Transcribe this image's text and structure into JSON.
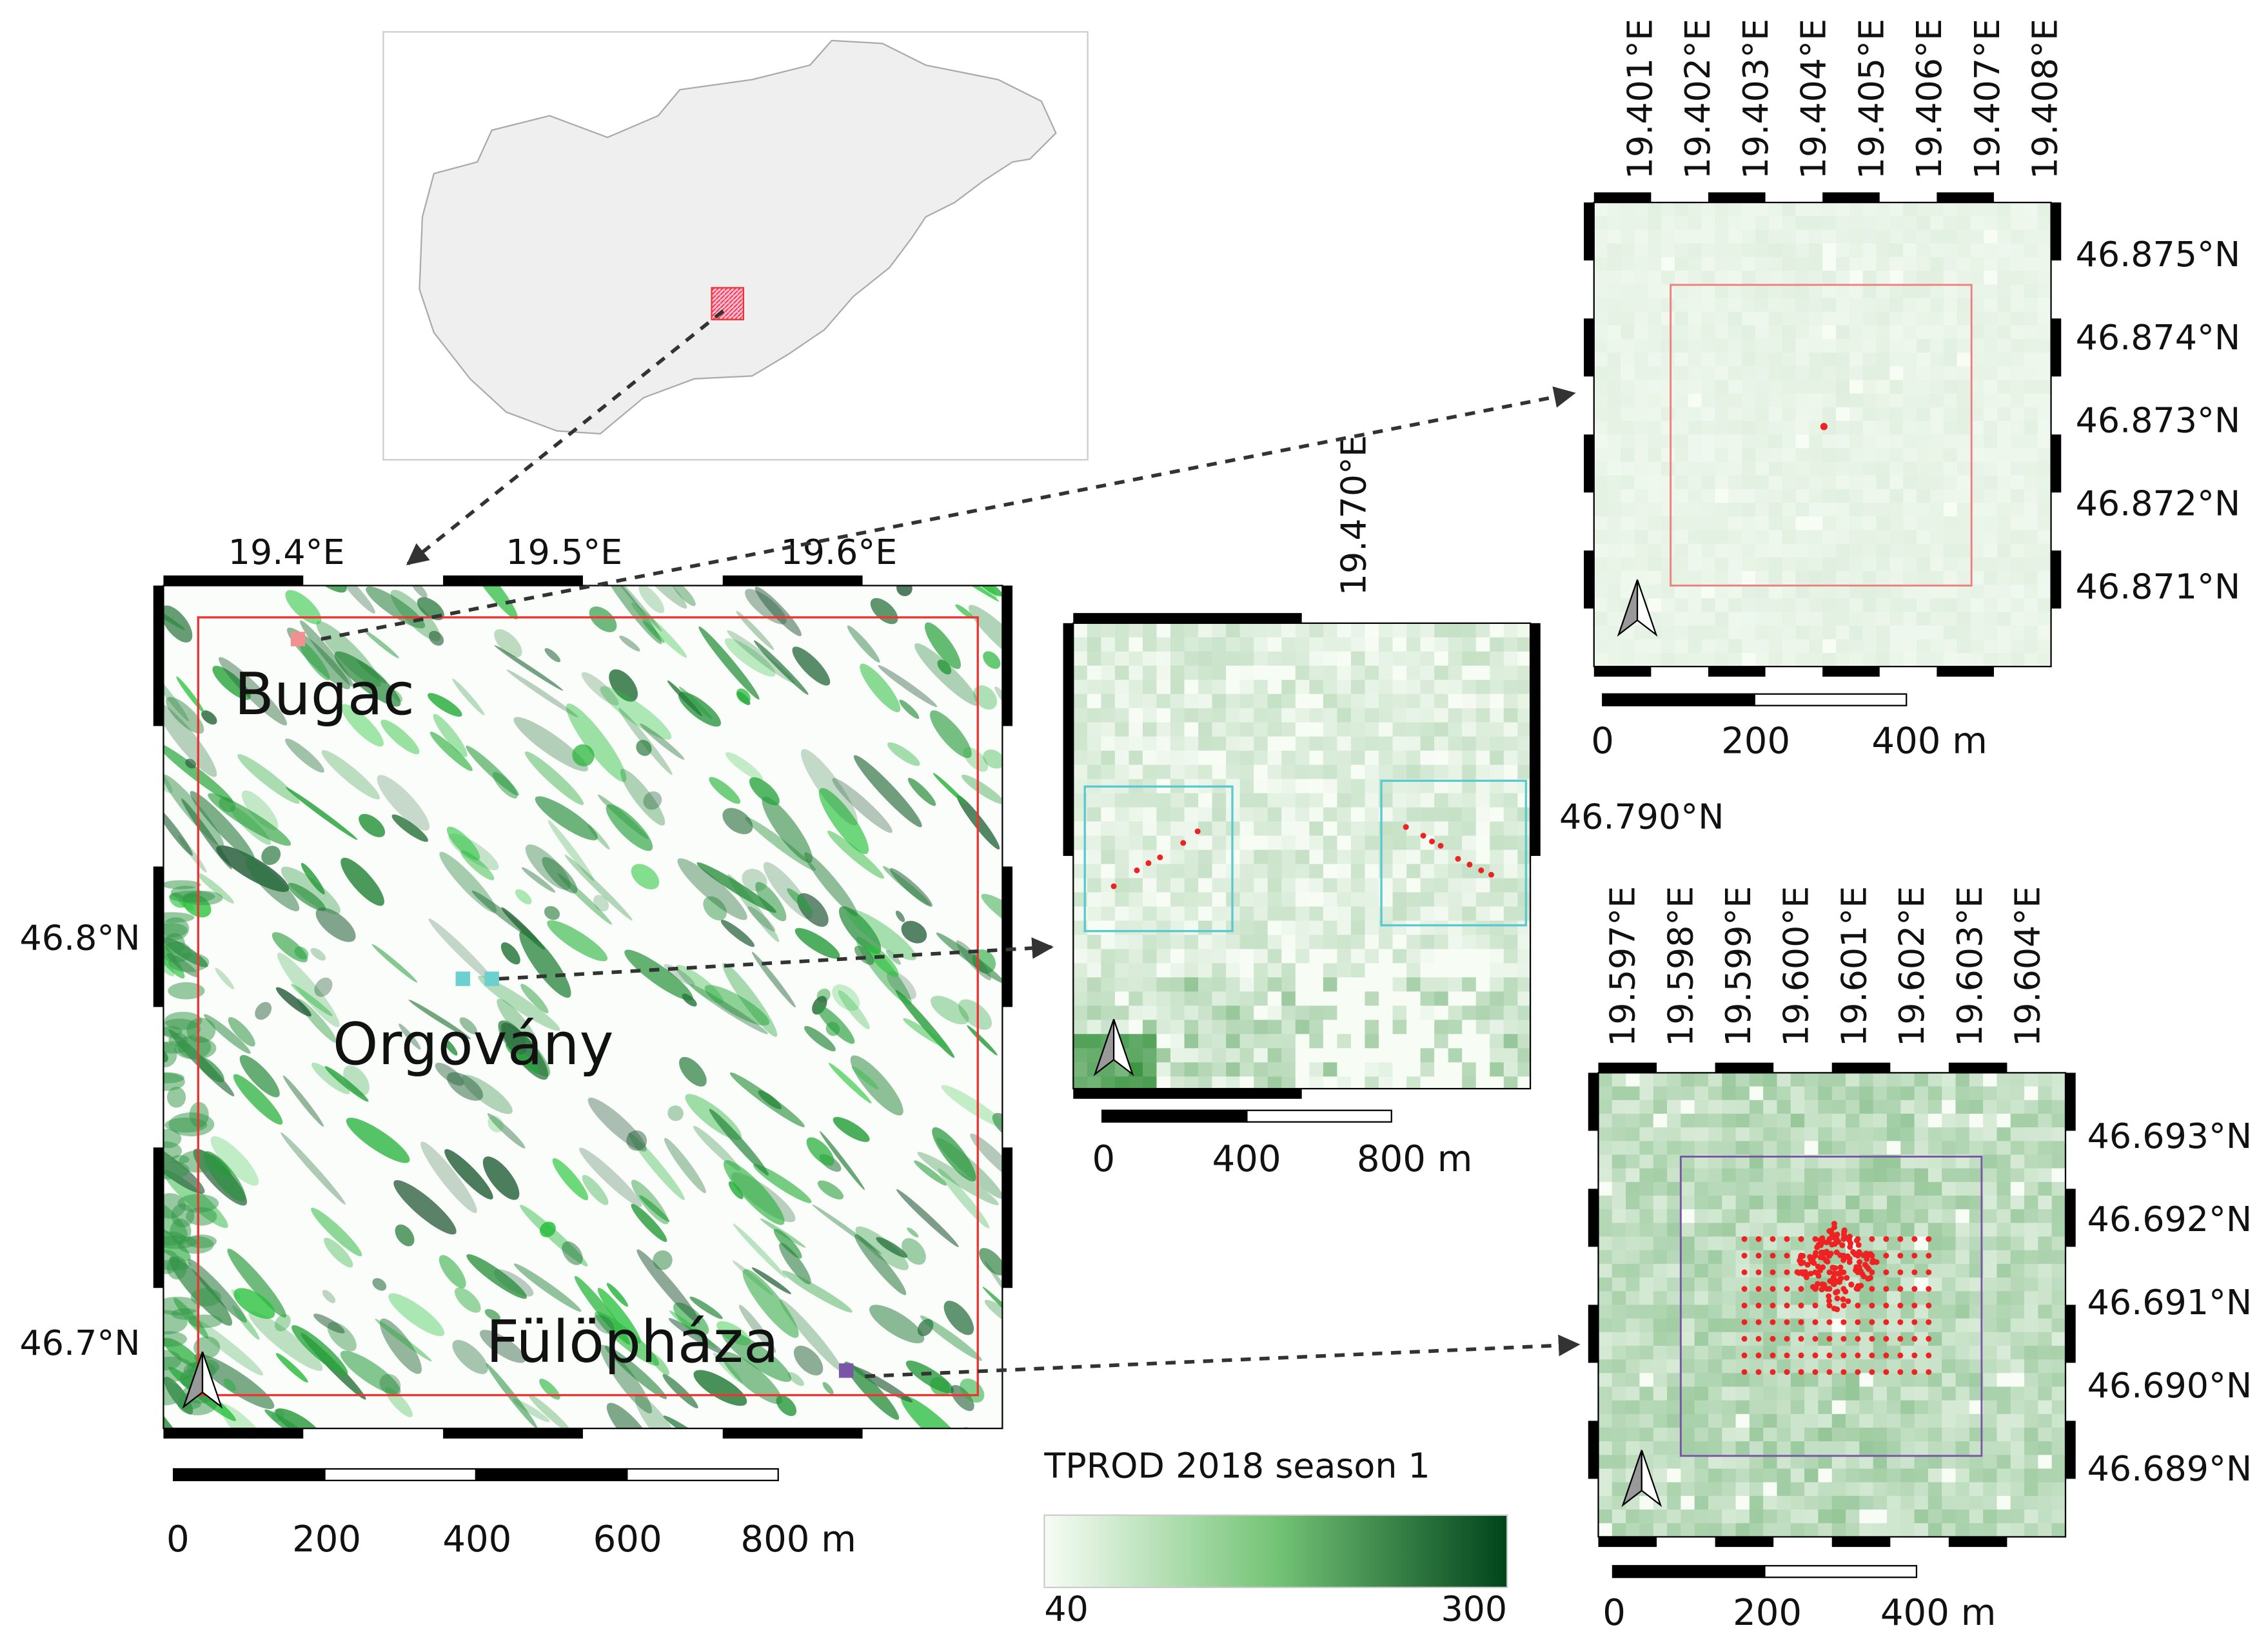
{
  "main_map": {
    "lon_labels": [
      "19.4°E",
      "19.5°E",
      "19.6°E"
    ],
    "lat_labels": [
      "46.8°N",
      "46.7°N"
    ],
    "sites": [
      "Bugac",
      "Orgovány",
      "Fülöpháza"
    ],
    "scale_labels": [
      "0",
      "200",
      "400",
      "600",
      "800 m"
    ]
  },
  "orgovany_map": {
    "lon_labels": [
      "19.470°E"
    ],
    "lat_labels": [
      "46.790°N"
    ],
    "scale_labels": [
      "0",
      "400",
      "800 m"
    ]
  },
  "bugac_map": {
    "lon_labels": [
      "19.401°E",
      "19.402°E",
      "19.403°E",
      "19.404°E",
      "19.405°E",
      "19.406°E",
      "19.407°E",
      "19.408°E"
    ],
    "lat_labels": [
      "46.875°N",
      "46.874°N",
      "46.873°N",
      "46.872°N",
      "46.871°N"
    ],
    "scale_labels": [
      "0",
      "200",
      "400 m"
    ]
  },
  "fulophaza_map": {
    "lon_labels": [
      "19.597°E",
      "19.598°E",
      "19.599°E",
      "19.600°E",
      "19.601°E",
      "19.602°E",
      "19.603°E",
      "19.604°E"
    ],
    "lat_labels": [
      "46.693°N",
      "46.692°N",
      "46.691°N",
      "46.690°N",
      "46.689°N"
    ],
    "scale_labels": [
      "0",
      "200",
      "400 m"
    ]
  },
  "legend": {
    "title": "TPROD 2018 season 1",
    "min": "40",
    "max": "300"
  }
}
